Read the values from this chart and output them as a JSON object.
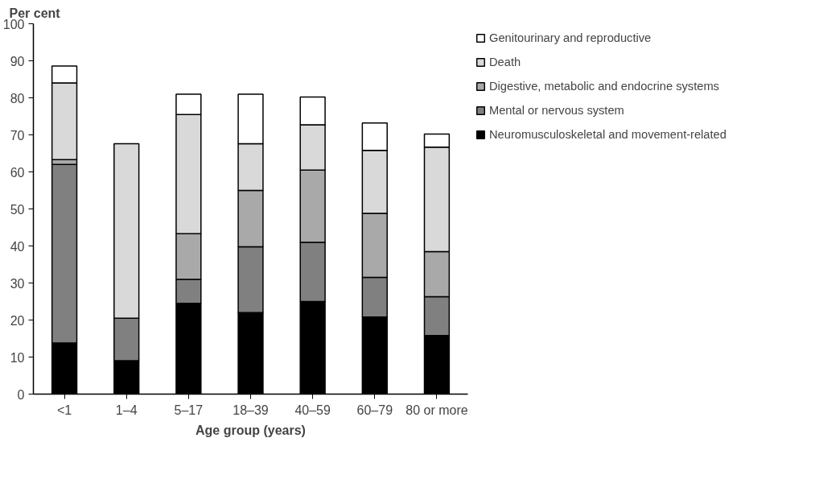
{
  "chart_data": {
    "type": "bar",
    "stacked": true,
    "xlabel": "Age group (years)",
    "ylabel": "Per cent",
    "categories": [
      "<1",
      "1–4",
      "5–17",
      "18–39",
      "40–59",
      "60–79",
      "80 or more"
    ],
    "series": [
      {
        "name": "Neuromusculoskeletal and movement-related",
        "color": "#000000",
        "values": [
          13.8,
          9,
          24.5,
          22,
          25,
          20.8,
          15.8
        ]
      },
      {
        "name": "Mental or nervous system",
        "color": "#808080",
        "values": [
          48.2,
          11.5,
          6.5,
          17.8,
          16,
          10.7,
          10.5
        ]
      },
      {
        "name": "Digestive, metabolic and endocrine systems",
        "color": "#a9a9a9",
        "values": [
          1.3,
          null,
          12.3,
          15.2,
          19.5,
          17.3,
          12.2
        ]
      },
      {
        "name": "Death",
        "color": "#d9d9d9",
        "values": [
          20.7,
          47.1,
          32.2,
          12.6,
          12.2,
          17,
          28.2
        ]
      },
      {
        "name": "Genitourinary and reproductive",
        "color": "#ffffff",
        "values": [
          4.6,
          null,
          5.5,
          13.4,
          7.5,
          7.4,
          3.5
        ]
      }
    ],
    "ylim": [
      0,
      100
    ],
    "yticks": [
      0,
      10,
      20,
      30,
      40,
      50,
      60,
      70,
      80,
      90,
      100
    ],
    "grid": false,
    "legend": "top right"
  }
}
